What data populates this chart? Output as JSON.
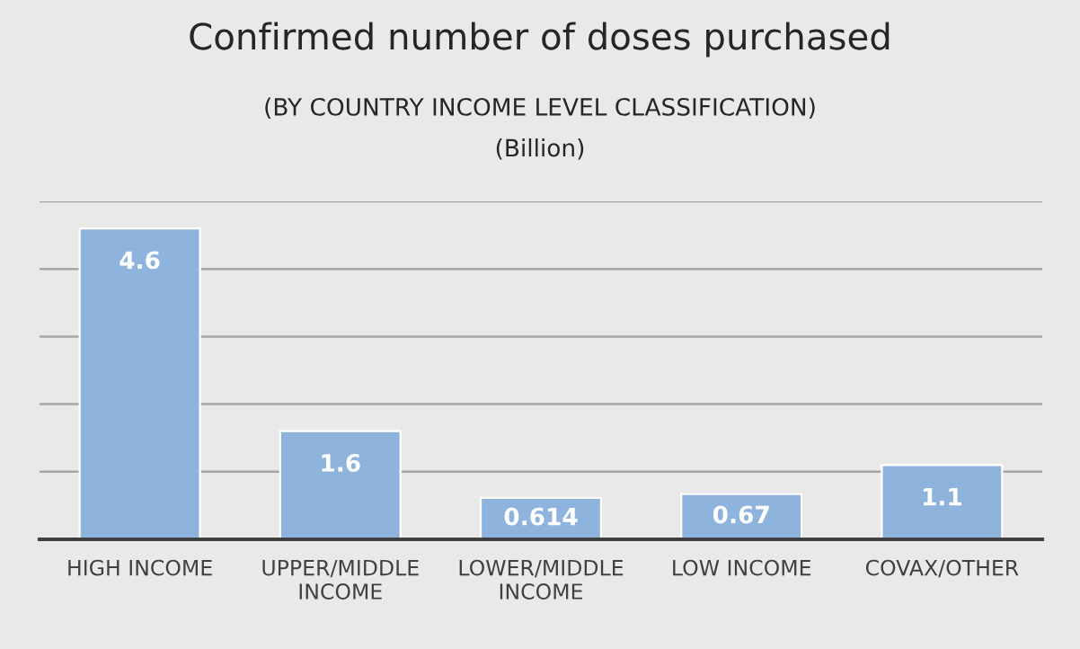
{
  "chart_data": {
    "type": "bar",
    "title": "Confirmed number of doses purchased",
    "subtitle": "(BY COUNTRY INCOME LEVEL CLASSIFICATION)\n(Billion)",
    "categories": [
      "HIGH INCOME",
      "UPPER/MIDDLE\nINCOME",
      "LOWER/MIDDLE\nINCOME",
      "LOW INCOME",
      "COVAX/OTHER"
    ],
    "values": [
      4.6,
      1.6,
      0.614,
      0.67,
      1.1
    ],
    "value_labels": [
      "4.6",
      "1.6",
      "0.614",
      "0.67",
      "1.1"
    ],
    "color": "#8eb4de",
    "ylim": [
      0,
      5
    ],
    "yticks": [
      {
        "value": 0,
        "label": null
      },
      {
        "value": 1,
        "label": null
      },
      {
        "value": 2,
        "label": null
      },
      {
        "value": 3,
        "label": null
      },
      {
        "value": 4,
        "label": null
      },
      {
        "value": 5,
        "label": null
      }
    ],
    "grid": "y",
    "tick_labels": "x"
  }
}
